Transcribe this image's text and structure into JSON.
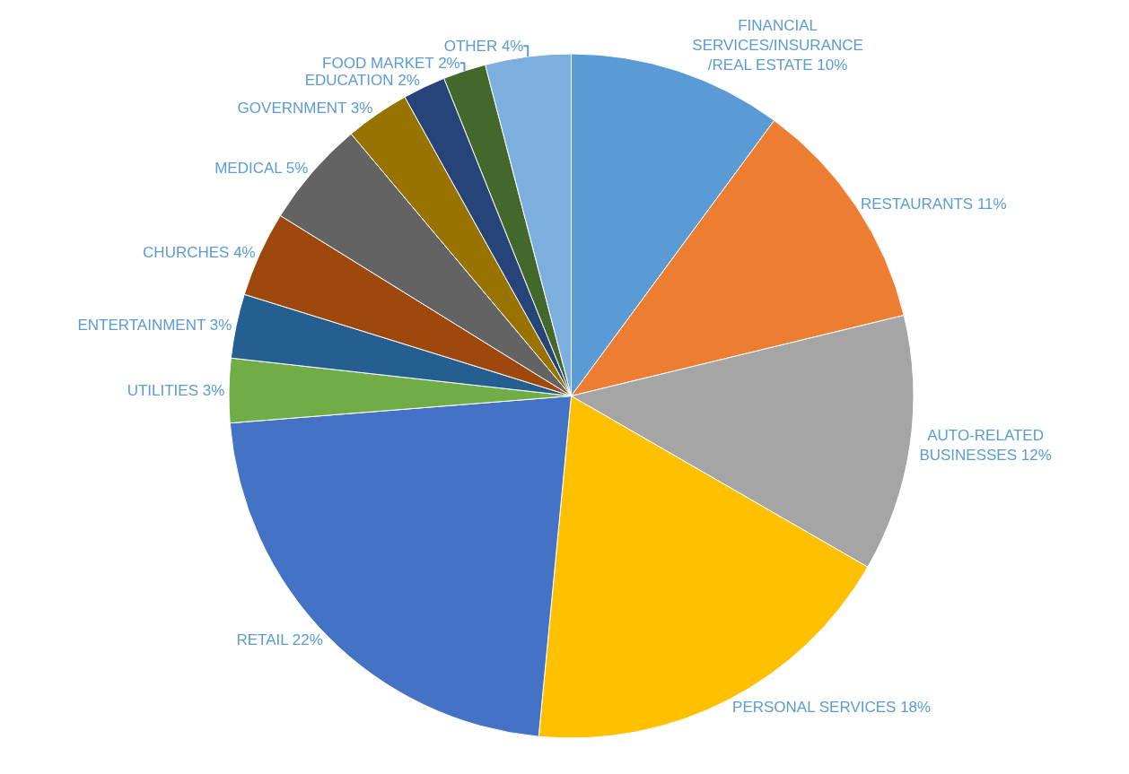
{
  "chart_data": {
    "type": "pie",
    "categories": [
      "FINANCIAL\nSERVICES/INSURANCE\n/REAL ESTATE",
      "RESTAURANTS",
      "AUTO-RELATED\nBUSINESSES",
      "PERSONAL SERVICES",
      "RETAIL",
      "UTILITIES",
      "ENTERTAINMENT",
      "CHURCHES",
      "MEDICAL",
      "GOVERNMENT",
      "EDUCATION",
      "FOOD MARKET",
      "OTHER"
    ],
    "values": [
      10,
      11,
      12,
      18,
      22,
      3,
      3,
      4,
      5,
      3,
      2,
      2,
      4
    ],
    "value_labels": [
      "10%",
      "11%",
      "12%",
      "18%",
      "22%",
      "3%",
      "3%",
      "4%",
      "5%",
      "3%",
      "2%",
      "2%",
      "4%"
    ],
    "colors": [
      "#5b9bd5",
      "#ed7d31",
      "#a5a5a5",
      "#ffc000",
      "#4472c4",
      "#70ad47",
      "#255e91",
      "#9e480e",
      "#636363",
      "#997300",
      "#264478",
      "#43682b",
      "#7cafdd"
    ],
    "legend": false
  }
}
